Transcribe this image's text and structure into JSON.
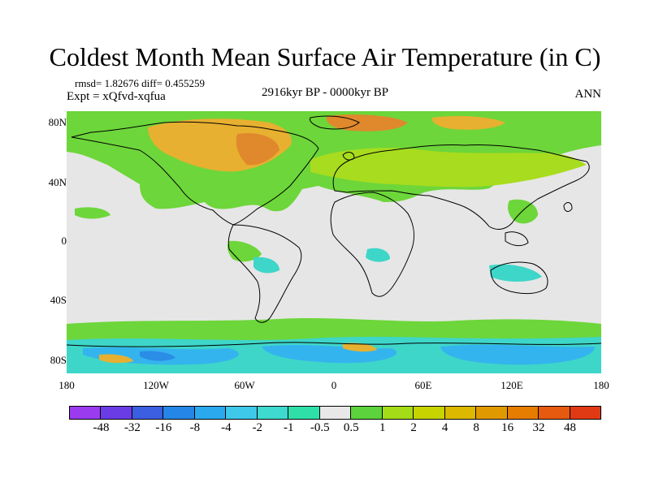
{
  "title": "Coldest Month Mean Surface Air Temperature (in C)",
  "stats": {
    "rmsd_label": "rmsd=",
    "rmsd": "1.82676",
    "diff_label": "diff=",
    "diff": "0.455259"
  },
  "expt": "Expt = xQfvd-xqfua",
  "period": "2916kyr BP - 0000kyr BP",
  "season": "ANN",
  "axes": {
    "lat_labels": [
      "80N",
      "40N",
      "0",
      "40S",
      "80S"
    ],
    "lon_labels": [
      "180",
      "120W",
      "60W",
      "0",
      "60E",
      "120E",
      "180"
    ]
  },
  "colorbar": {
    "colors": [
      "#9b3bf0",
      "#6a3ce6",
      "#3c5ee0",
      "#2586e8",
      "#2aa9ef",
      "#3ec8ea",
      "#3ed9cf",
      "#2ee0a8",
      "#e8e8e8",
      "#5cd23c",
      "#a4dc18",
      "#c8d400",
      "#dcb800",
      "#e09a00",
      "#e67c00",
      "#e65a10",
      "#e03a14"
    ],
    "labels": [
      "-48",
      "-32",
      "-16",
      "-8",
      "-4",
      "-2",
      "-1",
      "-0.5",
      "0.5",
      "1",
      "2",
      "4",
      "8",
      "16",
      "32",
      "48"
    ]
  },
  "map_colors": {
    "background": "#e6e6e6",
    "green": "#6dd63a",
    "yellow_green": "#a8dc1e",
    "orange": "#e8b030",
    "dark_orange": "#e0882c",
    "cyan": "#3ed6c8",
    "light_blue": "#34b4ee",
    "blue": "#2a8de6",
    "coast": "#000000"
  }
}
